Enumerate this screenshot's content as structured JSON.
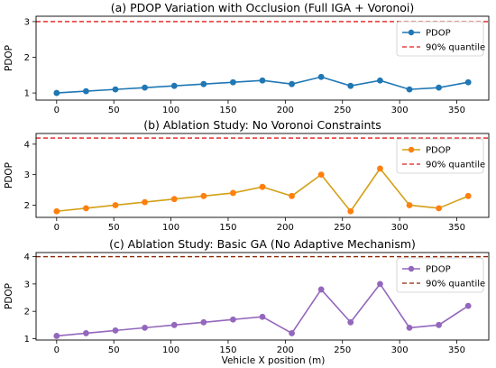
{
  "figure": {
    "xlabel": "Vehicle X position (m)"
  },
  "chart_data": [
    {
      "type": "line",
      "title": "(a) PDOP Variation with Occlusion (Full IGA + Voronoi)",
      "xlabel": "",
      "ylabel": "PDOP",
      "x": [
        0,
        25.7,
        51.4,
        77.1,
        102.9,
        128.6,
        154.3,
        180,
        205.7,
        231.4,
        257.1,
        282.9,
        308.6,
        334.3,
        360
      ],
      "xlim": [
        -18,
        378
      ],
      "ylim": [
        0.8,
        3.15
      ],
      "xticks": [
        0,
        50,
        100,
        150,
        200,
        250,
        300,
        350
      ],
      "yticks": [
        1,
        2,
        3
      ],
      "grid": false,
      "legend_loc": "upper right",
      "series": [
        {
          "name": "PDOP",
          "color": "#1f77b4",
          "values": [
            1.0,
            1.05,
            1.1,
            1.15,
            1.2,
            1.25,
            1.3,
            1.35,
            1.25,
            1.45,
            1.2,
            1.35,
            1.1,
            1.15,
            1.3
          ]
        }
      ],
      "hline": {
        "name": "90% quantile",
        "value": 3.0,
        "color": "#e31a1c",
        "style": "dashed"
      }
    },
    {
      "type": "line",
      "title": "(b) Ablation Study: No Voronoi Constraints",
      "xlabel": "",
      "ylabel": "PDOP",
      "x": [
        0,
        25.7,
        51.4,
        77.1,
        102.9,
        128.6,
        154.3,
        180,
        205.7,
        231.4,
        257.1,
        282.9,
        308.6,
        334.3,
        360
      ],
      "xlim": [
        -18,
        378
      ],
      "ylim": [
        1.6,
        4.35
      ],
      "xticks": [
        0,
        50,
        100,
        150,
        200,
        250,
        300,
        350
      ],
      "yticks": [
        2,
        3,
        4
      ],
      "grid": false,
      "legend_loc": "upper right",
      "series": [
        {
          "name": "PDOP",
          "color": "#d4a017",
          "marker_color": "#ff7f0e",
          "values": [
            1.8,
            1.9,
            2.0,
            2.1,
            2.2,
            2.3,
            2.4,
            2.6,
            2.3,
            3.0,
            1.8,
            3.2,
            2.0,
            1.9,
            2.3
          ]
        }
      ],
      "hline": {
        "name": "90% quantile",
        "value": 4.2,
        "color": "#e31a1c",
        "style": "dashed"
      }
    },
    {
      "type": "line",
      "title": "(c) Ablation Study: Basic GA (No Adaptive Mechanism)",
      "xlabel": "Vehicle X position (m)",
      "ylabel": "PDOP",
      "x": [
        0,
        25.7,
        51.4,
        77.1,
        102.9,
        128.6,
        154.3,
        180,
        205.7,
        231.4,
        257.1,
        282.9,
        308.6,
        334.3,
        360
      ],
      "xlim": [
        -18,
        378
      ],
      "ylim": [
        0.95,
        4.15
      ],
      "xticks": [
        0,
        50,
        100,
        150,
        200,
        250,
        300,
        350
      ],
      "yticks": [
        1,
        2,
        3,
        4
      ],
      "grid": false,
      "legend_loc": "upper right",
      "series": [
        {
          "name": "PDOP",
          "color": "#9467bd",
          "values": [
            1.1,
            1.2,
            1.3,
            1.4,
            1.5,
            1.6,
            1.7,
            1.8,
            1.2,
            2.8,
            1.6,
            3.0,
            1.4,
            1.5,
            2.2
          ]
        }
      ],
      "hline": {
        "name": "90% quantile",
        "value": 4.0,
        "color": "#8b2500",
        "style": "dashed"
      }
    }
  ]
}
